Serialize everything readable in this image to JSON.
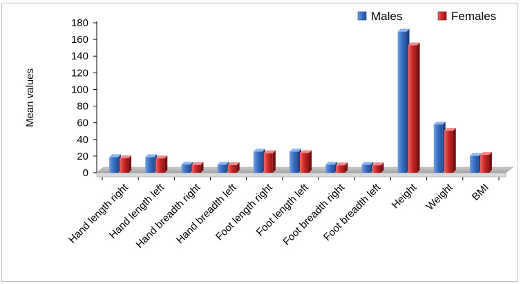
{
  "chart_data": {
    "type": "bar",
    "title": "",
    "xlabel": "",
    "ylabel": "Mean values",
    "ylim": [
      0,
      180
    ],
    "yticks": [
      0,
      20,
      40,
      60,
      80,
      100,
      120,
      140,
      160,
      180
    ],
    "categories": [
      "Hand length right",
      "Hand length left",
      "Hand breadth right",
      "Hand breadth left",
      "Foot length right",
      "Foot length left",
      "Foot breadth right",
      "Foot breadth left",
      "Height",
      "Weight",
      "BMI"
    ],
    "series": [
      {
        "name": "Males",
        "color": "#3b72c8",
        "values": [
          18.9,
          18.8,
          9.9,
          9.8,
          25.4,
          25.5,
          9.8,
          9.7,
          169.5,
          58,
          20.2
        ]
      },
      {
        "name": "Females",
        "color": "#d02a2a",
        "values": [
          17.4,
          17.3,
          9.4,
          9.3,
          23.5,
          23.6,
          9.0,
          9.0,
          153,
          50.5,
          21.5
        ]
      }
    ],
    "legend_position": "top-right",
    "style": "3d-column",
    "grid": false
  }
}
